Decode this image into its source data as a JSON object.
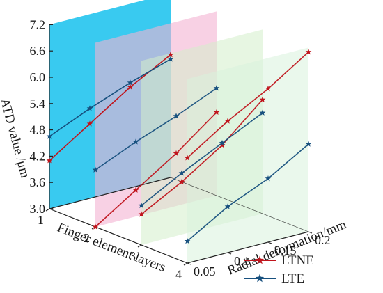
{
  "chart_data": {
    "type": "line",
    "projection": "3d",
    "ylabel": "ATD value /μm",
    "xlabel": "Finger element layers",
    "zlabel": "Radial deformation/mm",
    "ylim": [
      3.0,
      7.2
    ],
    "y_ticks": [
      "3.0",
      "3.6",
      "4.2",
      "4.8",
      "5.4",
      "6.0",
      "6.6",
      "7.2"
    ],
    "x_ticks": [
      "1",
      "2",
      "3",
      "4"
    ],
    "z_ticks": [
      "0.05",
      "0.1",
      "0.15",
      "0.2"
    ],
    "planes": [
      {
        "x": 1,
        "color": "#2ec7ef"
      },
      {
        "x": 2,
        "color": "#f4b2d2"
      },
      {
        "x": 3,
        "color": "#d4eecb"
      },
      {
        "x": 4,
        "color": "#d9f2dc"
      }
    ],
    "legend_position": "bottom-right",
    "series": [
      {
        "name": "LTNE",
        "color": "#c0141c",
        "lines": [
          {
            "x": 1,
            "z": [
              0.05,
              0.1,
              0.15,
              0.2
            ],
            "y": [
              4.1,
              4.7,
              5.3,
              5.8
            ]
          },
          {
            "x": 2,
            "z": [
              0.05,
              0.1,
              0.15,
              0.2
            ],
            "y": [
              3.0,
              3.6,
              4.2,
              4.9
            ]
          },
          {
            "x": 3,
            "z": [
              0.05,
              0.1,
              0.15,
              0.2
            ],
            "y": [
              3.7,
              4.2,
              4.8,
              5.6
            ]
          },
          {
            "x": 4,
            "z": [
              0.05,
              0.1,
              0.15,
              0.2
            ],
            "y": [
              5.4,
              6.0,
              6.5,
              7.1
            ]
          }
        ]
      },
      {
        "name": "LTE",
        "color": "#17507e",
        "lines": [
          {
            "x": 1,
            "z": [
              0.05,
              0.1,
              0.15,
              0.2
            ],
            "y": [
              4.65,
              5.05,
              5.4,
              5.7
            ]
          },
          {
            "x": 2,
            "z": [
              0.05,
              0.1,
              0.15,
              0.2
            ],
            "y": [
              4.3,
              4.7,
              5.05,
              5.45
            ]
          },
          {
            "x": 3,
            "z": [
              0.05,
              0.1,
              0.15,
              0.2
            ],
            "y": [
              3.9,
              4.4,
              4.85,
              5.3
            ]
          },
          {
            "x": 4,
            "z": [
              0.05,
              0.1,
              0.15,
              0.2
            ],
            "y": [
              3.5,
              4.05,
              4.45,
              5.0
            ]
          }
        ]
      }
    ]
  }
}
